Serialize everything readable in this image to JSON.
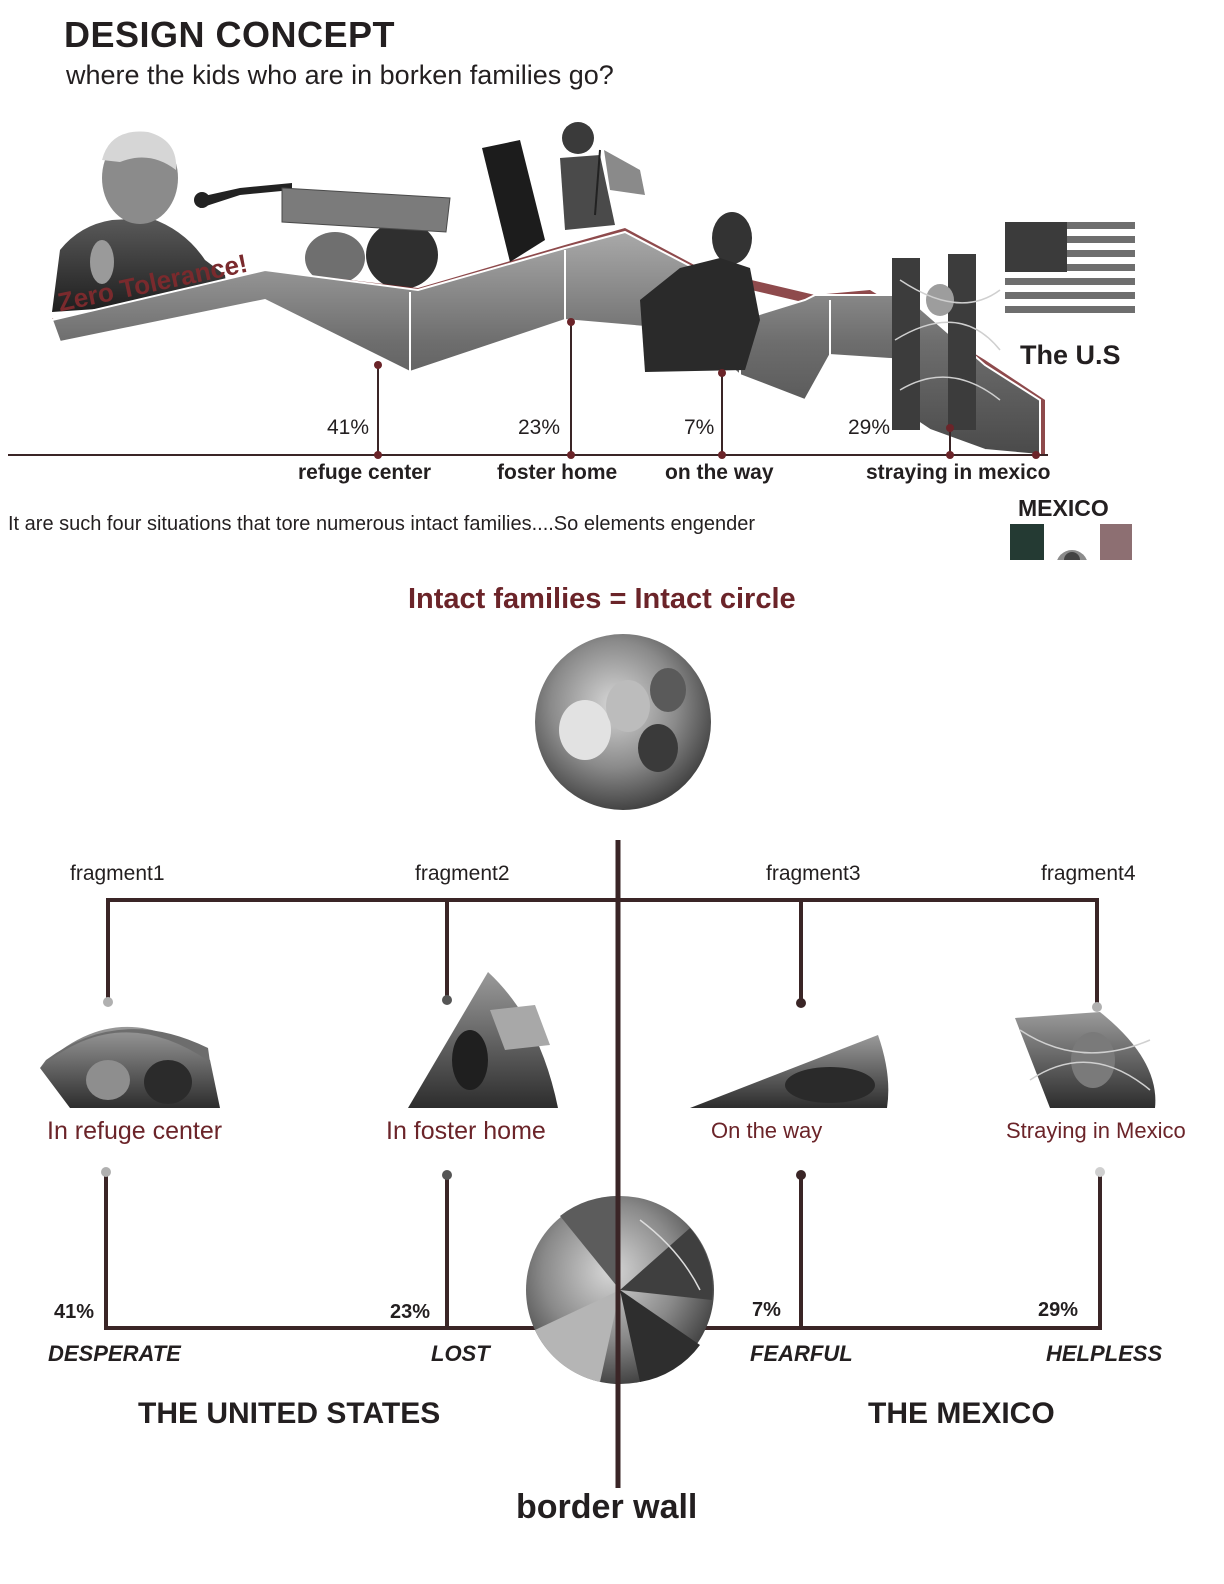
{
  "header": {
    "title": "DESIGN CONCEPT",
    "subtitle": "where the kids who are in borken families go?"
  },
  "collage": {
    "slogan": "Zero Tolerance!",
    "markers": [
      {
        "percent": "41%",
        "label": "refuge center"
      },
      {
        "percent": "23%",
        "label": "foster home"
      },
      {
        "percent": "7%",
        "label": "on the way"
      },
      {
        "percent": "29%",
        "label": "straying in mexico"
      }
    ],
    "us_label": "The U.S",
    "mexico_label": "MEXICO"
  },
  "description": "It are such four situations that tore numerous intact families....So elements engender",
  "concept": {
    "heading": "Intact families = Intact circle",
    "fragments": [
      {
        "name": "fragment1",
        "label": "In refuge center",
        "percent": "41%",
        "emotion": "DESPERATE"
      },
      {
        "name": "fragment2",
        "label": "In foster home",
        "percent": "23%",
        "emotion": "LOST"
      },
      {
        "name": "fragment3",
        "label": "On the way",
        "percent": "7%",
        "emotion": "FEARFUL"
      },
      {
        "name": "fragment4",
        "label": "Straying in Mexico",
        "percent": "29%",
        "emotion": "HELPLESS"
      }
    ],
    "left_country": "THE UNITED STATES",
    "right_country": "THE MEXICO",
    "border_label": "border wall"
  },
  "colors": {
    "accent": "#6b2429",
    "line": "#3a2526",
    "mexico_green": "#243a33",
    "mexico_red": "#8d6f72"
  }
}
